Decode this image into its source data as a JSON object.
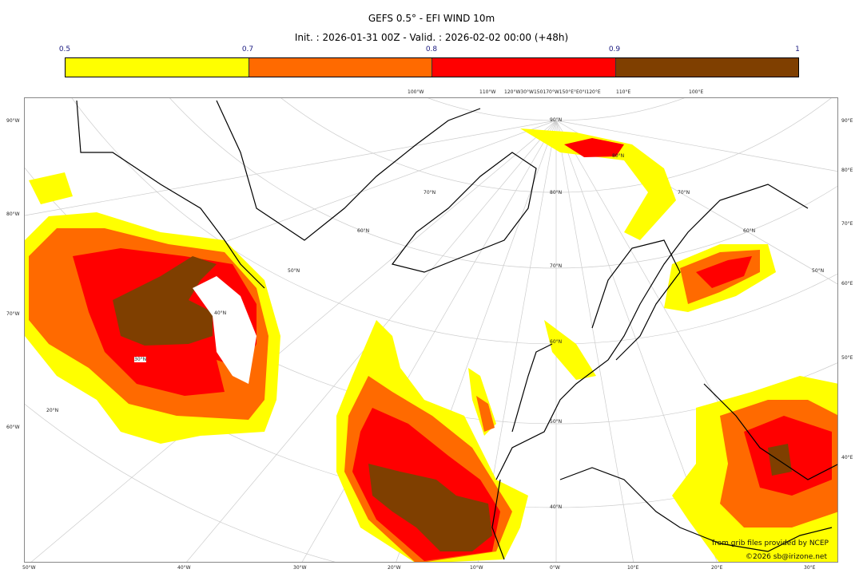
{
  "header": {
    "title": "GEFS 0.5° - EFI WIND 10m",
    "subtitle": "Init. : 2026-01-31 00Z - Valid. : 2026-02-02 00:00 (+48h)"
  },
  "colorbar": {
    "ticks": [
      "0.5",
      "0.7",
      "0.8",
      "0.9",
      "1"
    ],
    "colors": [
      "#ffff00",
      "#ff6a00",
      "#ff0000",
      "#7f3f00"
    ]
  },
  "axes": {
    "left": [
      "90°W",
      "80°W",
      "70°W",
      "60°W"
    ],
    "right": [
      "90°E",
      "80°E",
      "70°E",
      "60°E",
      "50°E",
      "40°E"
    ],
    "bottom": [
      "50°W",
      "40°W",
      "30°W",
      "20°W",
      "10°W",
      "0°W",
      "10°E",
      "20°E",
      "30°E"
    ],
    "top": [
      "100°W",
      "110°W",
      "120°W30°W150170°W150°E°E0°I120°E",
      "110°E",
      "100°E"
    ],
    "lat_labels": [
      "90°N",
      "80°N",
      "70°N",
      "60°N",
      "50°N",
      "40°N",
      "70°N",
      "60°N",
      "50°N",
      "40°N",
      "30°N",
      "20°N",
      "80°N",
      "70°N",
      "60°N",
      "50°N"
    ]
  },
  "credits": {
    "source": "from grib files provided by NCEP",
    "copyright": "©2026 sb@irizone.net"
  }
}
